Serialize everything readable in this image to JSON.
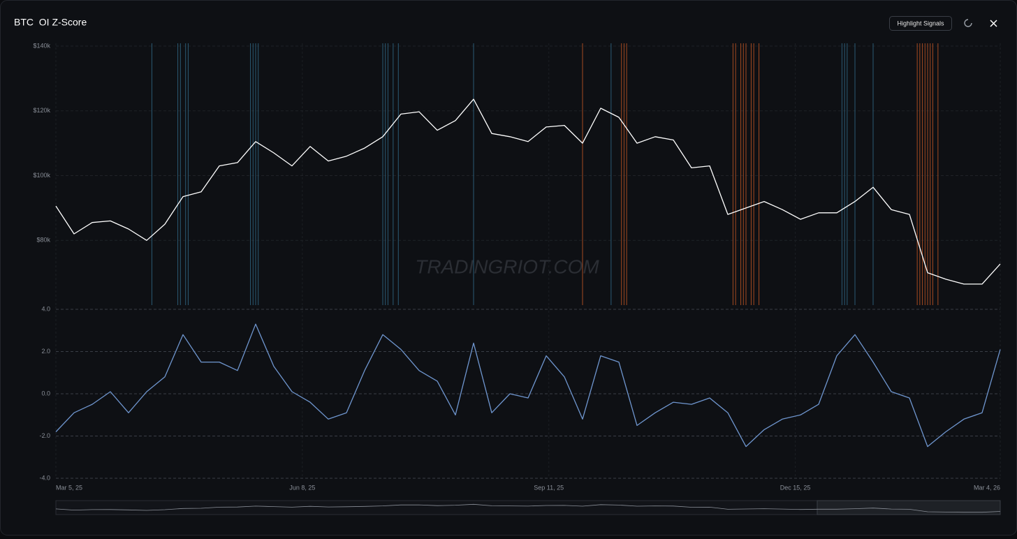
{
  "header": {
    "title": "BTC  OI Z-Score",
    "button": "Highlight Signals"
  },
  "watermark": "TRADINGRIOT.COM",
  "chart_data": [
    {
      "type": "line",
      "color": "#ffffff",
      "x": [
        "2025-03-05",
        "2025-03-12",
        "2025-03-19",
        "2025-03-26",
        "2025-04-02",
        "2025-04-09",
        "2025-04-16",
        "2025-04-23",
        "2025-04-30",
        "2025-05-07",
        "2025-05-14",
        "2025-05-21",
        "2025-05-28",
        "2025-06-04",
        "2025-06-11",
        "2025-06-18",
        "2025-06-25",
        "2025-07-02",
        "2025-07-09",
        "2025-07-16",
        "2025-07-23",
        "2025-07-30",
        "2025-08-06",
        "2025-08-13",
        "2025-08-20",
        "2025-08-27",
        "2025-09-03",
        "2025-09-10",
        "2025-09-17",
        "2025-09-24",
        "2025-10-01",
        "2025-10-08",
        "2025-10-15",
        "2025-10-22",
        "2025-10-29",
        "2025-11-05",
        "2025-11-12",
        "2025-11-19",
        "2025-11-26",
        "2025-12-03",
        "2025-12-10",
        "2025-12-17",
        "2025-12-24",
        "2025-12-31",
        "2026-01-07",
        "2026-01-14",
        "2026-01-21",
        "2026-01-28",
        "2026-02-04",
        "2026-02-11",
        "2026-02-18",
        "2026-02-25",
        "2026-03-04"
      ],
      "values": [
        90600,
        82000,
        85500,
        86000,
        83500,
        80000,
        85000,
        93500,
        95000,
        103000,
        104000,
        110500,
        107000,
        103000,
        109000,
        104500,
        106000,
        108500,
        112000,
        119000,
        119700,
        114000,
        117000,
        123600,
        113000,
        112000,
        110500,
        115000,
        115500,
        110000,
        120800,
        118000,
        110000,
        112000,
        111000,
        102400,
        103000,
        88000,
        90000,
        92000,
        89500,
        86500,
        88500,
        88500,
        92000,
        96400,
        89500,
        88000,
        70000,
        68000,
        66500,
        66500,
        72700
      ],
      "xlim": [
        "2025-03-05",
        "2026-03-04"
      ],
      "ylim": [
        60000,
        140000
      ],
      "yticks": [
        {
          "value": 80000,
          "label": "$80k"
        },
        {
          "value": 100000,
          "label": "$100k"
        },
        {
          "value": 120000,
          "label": "$120k"
        },
        {
          "value": 140000,
          "label": "$140k"
        }
      ],
      "grid": true,
      "signals": [
        {
          "color": "#2a5a74",
          "x": [
            "2025-04-11",
            "2025-04-21",
            "2025-04-22",
            "2025-04-24",
            "2025-04-25",
            "2025-05-19",
            "2025-05-20",
            "2025-05-21",
            "2025-05-22",
            "2025-07-09",
            "2025-07-10",
            "2025-07-11",
            "2025-07-13",
            "2025-07-15",
            "2025-08-13",
            "2025-10-05",
            "2026-01-02",
            "2026-01-03",
            "2026-01-04",
            "2026-01-07",
            "2026-01-14"
          ]
        },
        {
          "color": "#a44a22",
          "x": [
            "2025-09-24",
            "2025-10-09",
            "2025-10-10",
            "2025-10-11",
            "2025-11-21",
            "2025-11-22",
            "2025-11-24",
            "2025-11-25",
            "2025-11-26",
            "2025-11-28",
            "2025-11-29",
            "2025-12-01",
            "2026-01-31",
            "2026-02-01",
            "2026-02-02",
            "2026-02-03",
            "2026-02-04",
            "2026-02-05",
            "2026-02-06",
            "2026-02-08"
          ]
        }
      ]
    },
    {
      "type": "line",
      "color": "#6f96cf",
      "x": [
        "2025-03-05",
        "2025-03-12",
        "2025-03-19",
        "2025-03-26",
        "2025-04-02",
        "2025-04-09",
        "2025-04-16",
        "2025-04-23",
        "2025-04-30",
        "2025-05-07",
        "2025-05-14",
        "2025-05-21",
        "2025-05-28",
        "2025-06-04",
        "2025-06-11",
        "2025-06-18",
        "2025-06-25",
        "2025-07-02",
        "2025-07-09",
        "2025-07-16",
        "2025-07-23",
        "2025-07-30",
        "2025-08-06",
        "2025-08-13",
        "2025-08-20",
        "2025-08-27",
        "2025-09-03",
        "2025-09-10",
        "2025-09-17",
        "2025-09-24",
        "2025-10-01",
        "2025-10-08",
        "2025-10-15",
        "2025-10-22",
        "2025-10-29",
        "2025-11-05",
        "2025-11-12",
        "2025-11-19",
        "2025-11-26",
        "2025-12-03",
        "2025-12-10",
        "2025-12-17",
        "2025-12-24",
        "2025-12-31",
        "2026-01-07",
        "2026-01-14",
        "2026-01-21",
        "2026-01-28",
        "2026-02-04",
        "2026-02-11",
        "2026-02-18",
        "2026-02-25",
        "2026-03-04"
      ],
      "values": [
        -1.8,
        -0.9,
        -0.5,
        0.1,
        -0.9,
        0.1,
        0.8,
        2.8,
        1.5,
        1.5,
        1.1,
        3.3,
        1.3,
        0.1,
        -0.4,
        -1.2,
        -0.9,
        1.1,
        2.8,
        2.1,
        1.1,
        0.6,
        -1.0,
        2.4,
        -0.9,
        0,
        -0.2,
        1.8,
        0.8,
        -1.2,
        1.8,
        1.5,
        -1.5,
        -0.9,
        -0.4,
        -0.5,
        -0.2,
        -0.9,
        -2.5,
        -1.7,
        -1.2,
        -1.0,
        -0.5,
        1.8,
        2.8,
        1.5,
        0.1,
        -0.2,
        -2.5,
        -1.8,
        -1.2,
        -0.9,
        2.1
      ],
      "xlim": [
        "2025-03-05",
        "2026-03-04"
      ],
      "ylim": [
        -4,
        4
      ],
      "yticks": [
        {
          "value": -4,
          "label": "-4.0"
        },
        {
          "value": -2,
          "label": "-2.0"
        },
        {
          "value": 0,
          "label": "0.0"
        },
        {
          "value": 2,
          "label": "2.0"
        },
        {
          "value": 4,
          "label": "4.0"
        }
      ],
      "xticks": [
        {
          "value": "2025-03-05",
          "label": "Mar 5, 25"
        },
        {
          "value": "2025-06-08",
          "label": "Jun 8, 25"
        },
        {
          "value": "2025-09-11",
          "label": "Sep 11, 25"
        },
        {
          "value": "2025-12-15",
          "label": "Dec 15, 25"
        },
        {
          "value": "2026-03-04",
          "label": "Mar 4, 26"
        }
      ],
      "grid": true
    }
  ]
}
